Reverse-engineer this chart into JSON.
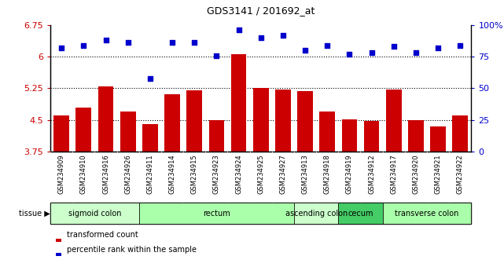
{
  "title": "GDS3141 / 201692_at",
  "samples": [
    "GSM234909",
    "GSM234910",
    "GSM234916",
    "GSM234926",
    "GSM234911",
    "GSM234914",
    "GSM234915",
    "GSM234923",
    "GSM234924",
    "GSM234925",
    "GSM234927",
    "GSM234913",
    "GSM234918",
    "GSM234919",
    "GSM234912",
    "GSM234917",
    "GSM234920",
    "GSM234921",
    "GSM234922"
  ],
  "bar_values": [
    4.6,
    4.8,
    5.3,
    4.7,
    4.4,
    5.1,
    5.2,
    4.5,
    6.05,
    5.25,
    5.22,
    5.18,
    4.7,
    4.52,
    4.47,
    5.22,
    4.5,
    4.35,
    4.6
  ],
  "dot_values": [
    82,
    84,
    88,
    86,
    58,
    86,
    86,
    76,
    96,
    90,
    92,
    80,
    84,
    77,
    78,
    83,
    78,
    82,
    84
  ],
  "bar_color": "#cc0000",
  "dot_color": "#0000cc",
  "ylim_left": [
    3.75,
    6.75
  ],
  "ylim_right": [
    0,
    100
  ],
  "yticks_left": [
    3.75,
    4.5,
    5.25,
    6.0,
    6.75
  ],
  "yticks_right": [
    0,
    25,
    50,
    75,
    100
  ],
  "ytick_labels_left": [
    "3.75",
    "4.5",
    "5.25",
    "6",
    "6.75"
  ],
  "ytick_labels_right": [
    "0",
    "25",
    "50",
    "75",
    "100%"
  ],
  "hlines": [
    4.5,
    5.25,
    6.0
  ],
  "tissue_groups": [
    {
      "label": "sigmoid colon",
      "start": 0,
      "end": 3,
      "color": "#ccffcc"
    },
    {
      "label": "rectum",
      "start": 4,
      "end": 10,
      "color": "#aaffaa"
    },
    {
      "label": "ascending colon",
      "start": 11,
      "end": 12,
      "color": "#ccffcc"
    },
    {
      "label": "cecum",
      "start": 13,
      "end": 14,
      "color": "#44cc66"
    },
    {
      "label": "transverse colon",
      "start": 15,
      "end": 18,
      "color": "#aaffaa"
    }
  ],
  "legend_labels": [
    "transformed count",
    "percentile rank within the sample"
  ],
  "legend_colors": [
    "#cc0000",
    "#0000cc"
  ],
  "bg_color": "#d8d8d8"
}
